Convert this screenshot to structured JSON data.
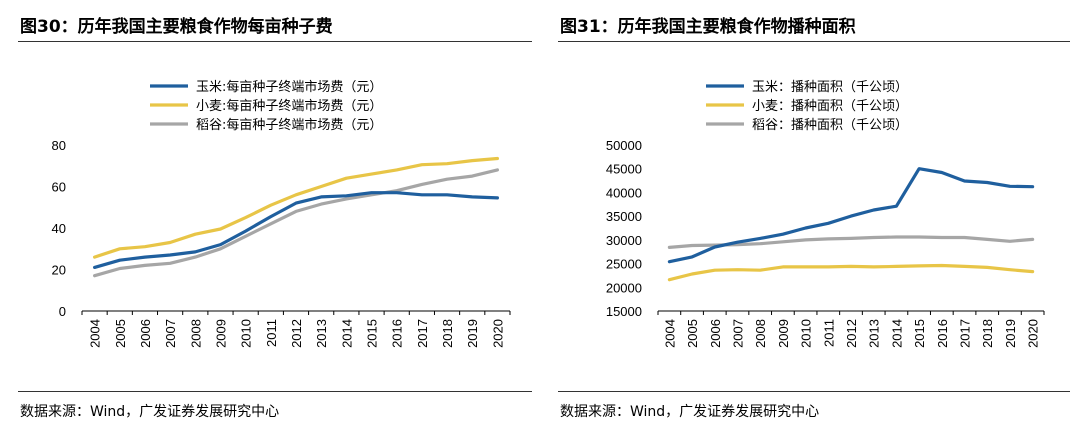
{
  "chart_data": [
    {
      "type": "line",
      "title": "图30：历年我国主要粮食作物每亩种子费",
      "source": "数据来源：Wind，广发证券发展研究中心",
      "x": [
        "2004",
        "2005",
        "2006",
        "2007",
        "2008",
        "2009",
        "2010",
        "2011",
        "2012",
        "2013",
        "2014",
        "2015",
        "2016",
        "2017",
        "2018",
        "2019",
        "2020"
      ],
      "ylim": [
        0,
        80
      ],
      "yticks": [
        "0",
        "20",
        "40",
        "60",
        "80"
      ],
      "legend_position": "top-left",
      "series": [
        {
          "name": "玉米:每亩种子终端市场费（元）",
          "color": "#1f5f9e",
          "values": [
            21,
            24.5,
            26,
            27,
            28.5,
            32,
            38.5,
            45.5,
            52,
            55,
            55.5,
            57,
            57,
            56,
            56,
            55,
            54.5
          ]
        },
        {
          "name": "小麦:每亩种子终端市场费（元）",
          "color": "#e8c547",
          "values": [
            26,
            30,
            31,
            33,
            37,
            39.5,
            45,
            51,
            56,
            60,
            64,
            66,
            68,
            70.5,
            71,
            72.5,
            73.5
          ]
        },
        {
          "name": "稻谷:每亩种子终端市场费（元）",
          "color": "#a6a6a6",
          "values": [
            17,
            20.5,
            22,
            23,
            26,
            30,
            36,
            42,
            48,
            51.5,
            54,
            56,
            58,
            61,
            63.5,
            65,
            68
          ]
        }
      ]
    },
    {
      "type": "line",
      "title": "图31：历年我国主要粮食作物播种面积",
      "source": "数据来源：Wind，广发证券发展研究中心",
      "x": [
        "2004",
        "2005",
        "2006",
        "2007",
        "2008",
        "2009",
        "2010",
        "2011",
        "2012",
        "2013",
        "2014",
        "2015",
        "2016",
        "2017",
        "2018",
        "2019",
        "2020"
      ],
      "ylim": [
        15000,
        50000
      ],
      "yticks": [
        "15000",
        "20000",
        "25000",
        "30000",
        "35000",
        "40000",
        "45000",
        "50000"
      ],
      "legend_position": "top-left",
      "series": [
        {
          "name": "玉米：播种面积（千公顷）",
          "color": "#1f5f9e",
          "values": [
            25400,
            26400,
            28500,
            29500,
            30300,
            31200,
            32500,
            33500,
            35000,
            36300,
            37100,
            45000,
            44200,
            42400,
            42100,
            41300,
            41200
          ]
        },
        {
          "name": "小麦：播种面积（千公顷）",
          "color": "#e8c547",
          "values": [
            21600,
            22800,
            23600,
            23700,
            23600,
            24300,
            24300,
            24300,
            24400,
            24300,
            24400,
            24500,
            24600,
            24400,
            24200,
            23700,
            23300
          ]
        },
        {
          "name": "稻谷：播种面积（千公顷）",
          "color": "#a6a6a6",
          "values": [
            28400,
            28800,
            28900,
            29000,
            29200,
            29600,
            30000,
            30200,
            30300,
            30500,
            30600,
            30600,
            30500,
            30500,
            30100,
            29700,
            30100
          ]
        }
      ]
    }
  ]
}
